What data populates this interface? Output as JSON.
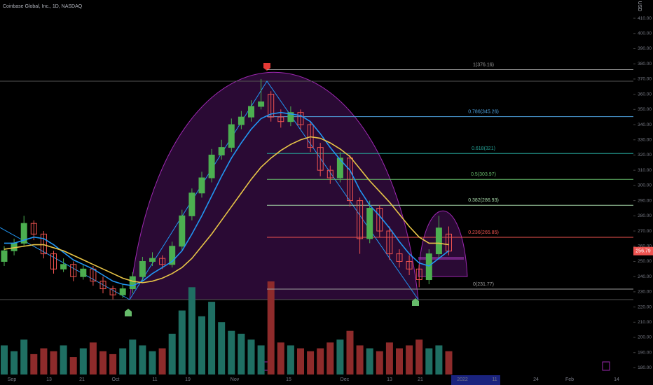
{
  "chart_data": {
    "type": "candlestick",
    "title": "Coinbase Global, Inc., 1D, NASDAQ",
    "currency": "USD",
    "x_labels": [
      "Sep",
      "13",
      "21",
      "Oct",
      "11",
      "19",
      "Nov",
      "15",
      "Dec",
      "13",
      "21",
      "2022",
      "11",
      "24",
      "Feb",
      "14"
    ],
    "open": [
      250,
      257,
      262,
      275,
      268,
      255,
      245,
      248,
      240,
      245,
      237,
      232,
      228,
      232,
      240,
      250,
      252,
      248,
      260,
      280,
      295,
      305,
      320,
      325,
      340,
      345,
      352,
      360,
      345,
      342,
      348,
      340,
      325,
      310,
      305,
      318,
      290,
      265,
      285,
      270,
      255,
      250,
      245,
      238,
      255,
      268
    ],
    "high": [
      260,
      265,
      280,
      277,
      270,
      257,
      252,
      250,
      248,
      247,
      240,
      234,
      235,
      243,
      253,
      256,
      254,
      263,
      284,
      298,
      309,
      324,
      330,
      344,
      349,
      356,
      370,
      362,
      350,
      352,
      350,
      342,
      328,
      313,
      322,
      320,
      292,
      290,
      287,
      273,
      258,
      254,
      248,
      258,
      280,
      273
    ],
    "low": [
      247,
      254,
      260,
      264,
      252,
      242,
      243,
      237,
      238,
      234,
      229,
      225,
      226,
      229,
      237,
      247,
      245,
      246,
      257,
      277,
      292,
      302,
      317,
      322,
      337,
      342,
      350,
      342,
      338,
      339,
      337,
      322,
      306,
      301,
      302,
      286,
      255,
      262,
      266,
      251,
      246,
      241,
      233,
      235,
      252,
      254
    ],
    "close": [
      257,
      262,
      275,
      268,
      255,
      245,
      248,
      240,
      245,
      237,
      232,
      228,
      232,
      240,
      250,
      252,
      248,
      260,
      280,
      295,
      305,
      320,
      325,
      340,
      345,
      352,
      355,
      345,
      342,
      348,
      340,
      325,
      310,
      305,
      318,
      290,
      265,
      285,
      270,
      255,
      250,
      245,
      238,
      255,
      272,
      256.79
    ],
    "volume": [
      10,
      8,
      12,
      7,
      9,
      8,
      10,
      6,
      9,
      11,
      8,
      7,
      9,
      12,
      10,
      8,
      9,
      14,
      22,
      30,
      20,
      25,
      18,
      15,
      14,
      12,
      10,
      32,
      11,
      10,
      9,
      8,
      9,
      11,
      12,
      15,
      10,
      9,
      8,
      11,
      9,
      10,
      12,
      9,
      10,
      8
    ],
    "series": [
      {
        "color": "#2196f3",
        "values": [
          262,
          262,
          264,
          266,
          265,
          261,
          256,
          251,
          248,
          245,
          241,
          237,
          235,
          234,
          237,
          242,
          246,
          250,
          257,
          268,
          280,
          293,
          306,
          318,
          328,
          337,
          344,
          347,
          348,
          347,
          346,
          342,
          334,
          325,
          317,
          310,
          297,
          287,
          280,
          272,
          263,
          255,
          249,
          247,
          252,
          257
        ]
      },
      {
        "color": "#e8c547",
        "values": [
          258,
          259,
          260,
          261,
          261,
          259,
          257,
          254,
          251,
          248,
          245,
          242,
          239,
          237,
          236,
          237,
          239,
          242,
          246,
          252,
          260,
          268,
          277,
          286,
          295,
          304,
          312,
          318,
          323,
          327,
          330,
          332,
          331,
          328,
          324,
          319,
          311,
          303,
          296,
          289,
          281,
          273,
          266,
          262,
          262,
          261
        ]
      }
    ],
    "fib_levels": [
      {
        "label": "1(376.16)",
        "value": 376.16,
        "color": "#9e9e9e"
      },
      {
        "label": "0.786(345.26)",
        "value": 345.26,
        "color": "#4fa3e0"
      },
      {
        "label": "0.618(321)",
        "value": 321,
        "color": "#26a69a"
      },
      {
        "label": "0.5(303.97)",
        "value": 303.97,
        "color": "#66bb6a"
      },
      {
        "label": "0.382(286.93)",
        "value": 286.93,
        "color": "#a5d6a7"
      },
      {
        "label": "0.236(265.85)",
        "value": 265.85,
        "color": "#ef5350"
      },
      {
        "label": "0(231.77)",
        "value": 231.77,
        "color": "#9e9e9e"
      }
    ],
    "up_color": "#4caf50",
    "down_color": "#ef5350",
    "ylim": [
      175.6,
      422
    ],
    "yticks": [
      {
        "value": 180,
        "label": "180.00"
      },
      {
        "value": 190,
        "label": "190.00"
      },
      {
        "value": 200,
        "label": "200.00"
      },
      {
        "value": 210,
        "label": "210.00"
      },
      {
        "value": 220,
        "label": "220.00"
      },
      {
        "value": 230,
        "label": "230.00"
      },
      {
        "value": 240,
        "label": "240.00"
      },
      {
        "value": 250,
        "label": "250.00"
      },
      {
        "value": 260,
        "label": "260.00"
      },
      {
        "value": 270,
        "label": "270.00"
      },
      {
        "value": 280,
        "label": "280.00"
      },
      {
        "value": 290,
        "label": "290.00"
      },
      {
        "value": 300,
        "label": "300.00"
      },
      {
        "value": 310,
        "label": "310.00"
      },
      {
        "value": 320,
        "label": "320.00"
      },
      {
        "value": 330,
        "label": "330.00"
      },
      {
        "value": 340,
        "label": "340.00"
      },
      {
        "value": 350,
        "label": "350.00"
      },
      {
        "value": 360,
        "label": "360.00"
      },
      {
        "value": 370,
        "label": "370.00"
      },
      {
        "value": 380,
        "label": "380.00"
      },
      {
        "value": 390,
        "label": "390.00"
      },
      {
        "value": 400,
        "label": "400.00"
      },
      {
        "value": 410,
        "label": "410.00"
      }
    ]
  }
}
